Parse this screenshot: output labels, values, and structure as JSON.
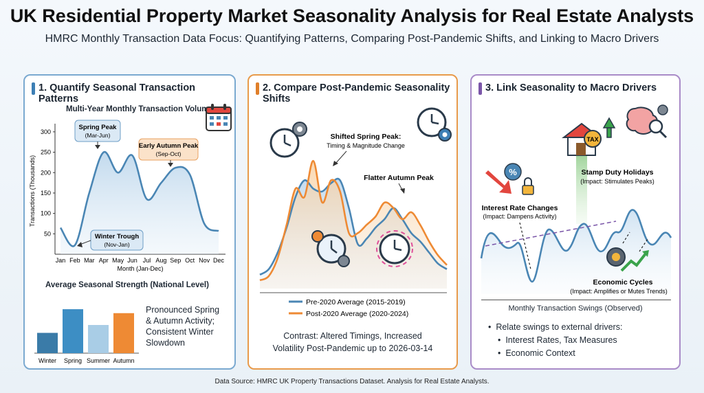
{
  "header": {
    "title": "UK Residential Property Market Seasonality Analysis for Real Estate Analysts",
    "subtitle": "HMRC Monthly Transaction Data Focus: Quantifying Patterns, Comparing Post-Pandemic Shifts, and Linking to Macro Drivers"
  },
  "panel1": {
    "heading": "1. Quantify Seasonal Transaction Patterns",
    "chart_title": "Multi-Year Monthly Transaction Volume",
    "ylabel": "Transactions (Thousands)",
    "xlabel": "Month (Jan-Dec)",
    "y_ticks": [
      "300",
      "250",
      "200",
      "150",
      "100",
      "50"
    ],
    "x_ticks": [
      "Jan",
      "Feb",
      "Mar",
      "Apr",
      "May",
      "Jun",
      "Jul",
      "Aug",
      "Sep",
      "Oct",
      "Nov",
      "Dec"
    ],
    "callouts": {
      "spring_title": "Spring Peak",
      "spring_sub": "(Mar-Jun)",
      "autumn_title": "Early Autumn Peak",
      "autumn_sub": "(Sep-Oct)",
      "winter_title": "Winter Trough",
      "winter_sub": "(Nov-Jan)"
    },
    "bar_title": "Average Seasonal Strength (National Level)",
    "bar_note_lines": [
      "Pronounced Spring",
      "& Autumn Activity;",
      "Consistent Winter",
      "Slowdown"
    ]
  },
  "panel2": {
    "heading": "2. Compare Post-Pandemic Seasonality Shifts",
    "callouts": {
      "spring_title": "Shifted Spring Peak:",
      "spring_sub": "Timing & Magnitude Change",
      "autumn_title": "Flatter Autumn Peak"
    },
    "legend_pre": "Pre-2020 Average (2015-2019)",
    "legend_post": "Post-2020 Average (2020-2024)",
    "contrast_lines": [
      "Contrast: Altered Timings, Increased",
      "Volatility Post-Pandemic up to 2026-03-14"
    ]
  },
  "panel3": {
    "heading": "3. Link Seasonality to Macro Drivers",
    "drivers": {
      "stamp_title": "Stamp Duty Holidays",
      "stamp_sub": "(Impact: Stimulates Peaks)",
      "rate_title": "Interest Rate Changes",
      "rate_sub": "(Impact: Dampens Activity)",
      "econ_title": "Economic Cycles",
      "econ_sub": "(Impact: Amplifies or Mutes Trends)"
    },
    "tax_label": "TAX",
    "swings_label": "Monthly Transaction Swings (Observed)",
    "bullets": [
      "Relate swings to external drivers:",
      "Interest Rates, Tax Measures",
      "Economic Context"
    ]
  },
  "footer": "Data Source: HMRC UK Property Transactions Dataset. Analysis for Real Estate Analysts.",
  "chart_data": [
    {
      "type": "line",
      "title": "Multi-Year Monthly Transaction Volume",
      "xlabel": "Month (Jan-Dec)",
      "ylabel": "Transactions (Thousands)",
      "categories": [
        "Jan",
        "Feb",
        "Mar",
        "Apr",
        "May",
        "Jun",
        "Jul",
        "Aug",
        "Sep",
        "Oct",
        "Nov",
        "Dec"
      ],
      "ylim": [
        0,
        320
      ],
      "series": [
        {
          "values": [
            65,
            22,
            150,
            250,
            200,
            242,
            135,
            175,
            212,
            195,
            75,
            57
          ]
        }
      ]
    },
    {
      "type": "bar",
      "title": "Average Seasonal Strength (National Level)",
      "categories": [
        "Winter",
        "Spring",
        "Summer",
        "Autumn"
      ],
      "values": [
        36,
        78,
        50,
        71
      ],
      "ylim": [
        0,
        100
      ],
      "colors": [
        "#3a7ba8",
        "#3d8ec4",
        "#a9cde6",
        "#ee8a34"
      ]
    },
    {
      "type": "line",
      "categories": [
        "1",
        "2",
        "3",
        "4",
        "5",
        "6",
        "7",
        "8",
        "9",
        "10",
        "11",
        "12",
        "13",
        "14",
        "15",
        "16",
        "17",
        "18",
        "19",
        "20",
        "21",
        "22"
      ],
      "ylim": [
        0,
        100
      ],
      "series": [
        {
          "name": "Pre-2020 Average (2015-2019)",
          "color": "#4a86b4",
          "values": [
            10,
            14,
            26,
            44,
            66,
            78,
            72,
            70,
            76,
            78,
            58,
            32,
            36,
            44,
            50,
            58,
            50,
            40,
            34,
            26,
            18,
            14
          ]
        },
        {
          "name": "Post-2020 Average (2020-2024)",
          "color": "#ee8a34",
          "values": [
            6,
            9,
            22,
            46,
            72,
            66,
            92,
            62,
            78,
            70,
            40,
            40,
            46,
            52,
            62,
            58,
            50,
            55,
            46,
            34,
            24,
            17
          ]
        }
      ]
    }
  ]
}
